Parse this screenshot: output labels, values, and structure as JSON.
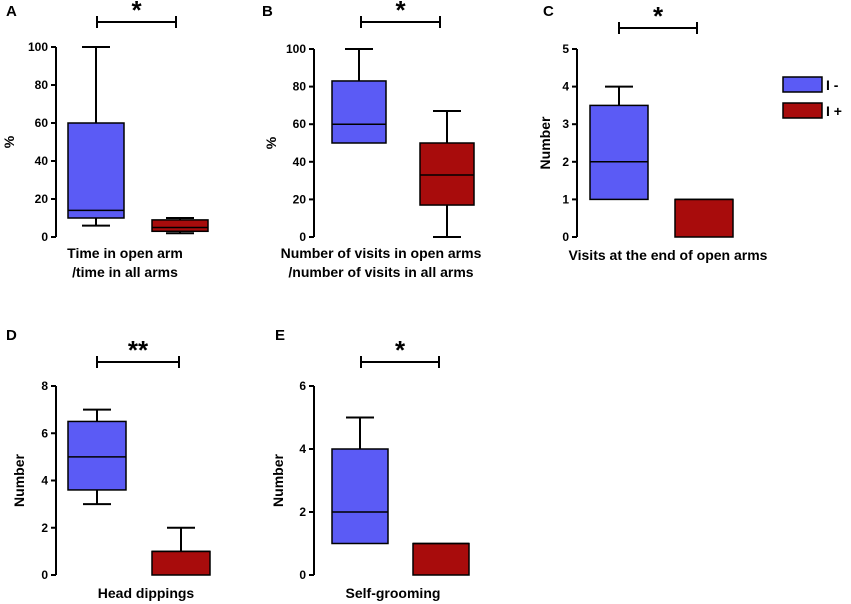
{
  "colors": {
    "group_a": "#5b5bf5",
    "group_b": "#a80c0c",
    "stroke": "#000000"
  },
  "legend": [
    {
      "label": "I -",
      "color": "#5b5bf5"
    },
    {
      "label": "I +",
      "color": "#a80c0c"
    }
  ],
  "chart_data": [
    {
      "type": "box",
      "panel": "A",
      "ylabel": "%",
      "xlabel_lines": [
        "Time in open arm",
        "/time in all arms"
      ],
      "ylim": [
        0,
        100
      ],
      "ticks": [
        0,
        20,
        40,
        60,
        80,
        100
      ],
      "significance": "*",
      "series": [
        {
          "name": "I -",
          "min": 6,
          "q1": 10,
          "median": 14,
          "q3": 60,
          "max": 100
        },
        {
          "name": "I +",
          "min": 2,
          "q1": 3,
          "median": 5,
          "q3": 9,
          "max": 10
        }
      ]
    },
    {
      "type": "box",
      "panel": "B",
      "ylabel": "%",
      "xlabel_lines": [
        "Number of visits in open arms",
        "/number of visits in all arms"
      ],
      "ylim": [
        0,
        100
      ],
      "ticks": [
        0,
        20,
        40,
        60,
        80,
        100
      ],
      "significance": "*",
      "series": [
        {
          "name": "I -",
          "min": 50,
          "q1": 50,
          "median": 60,
          "q3": 83,
          "max": 100
        },
        {
          "name": "I +",
          "min": 0,
          "q1": 17,
          "median": 33,
          "q3": 50,
          "max": 67
        }
      ]
    },
    {
      "type": "box",
      "panel": "C",
      "ylabel": "Number",
      "xlabel_lines": [
        "Visits at the end of open arms"
      ],
      "ylim": [
        0,
        5
      ],
      "ticks": [
        0,
        1,
        2,
        3,
        4,
        5
      ],
      "significance": "*",
      "series": [
        {
          "name": "I -",
          "min": 1,
          "q1": 1,
          "median": 2,
          "q3": 3.5,
          "max": 4
        },
        {
          "name": "I +",
          "min": 0,
          "q1": 0,
          "median": 1,
          "q3": 1,
          "max": 1
        }
      ]
    },
    {
      "type": "box",
      "panel": "D",
      "ylabel": "Number",
      "xlabel_lines": [
        "Head dippings"
      ],
      "ylim": [
        0,
        8
      ],
      "ticks": [
        0,
        2,
        4,
        6,
        8
      ],
      "significance": "**",
      "series": [
        {
          "name": "I -",
          "min": 3,
          "q1": 3.6,
          "median": 5,
          "q3": 6.5,
          "max": 7
        },
        {
          "name": "I +",
          "min": 0,
          "q1": 0,
          "median": 1,
          "q3": 1,
          "max": 2
        }
      ]
    },
    {
      "type": "box",
      "panel": "E",
      "ylabel": "Number",
      "xlabel_lines": [
        "Self-grooming"
      ],
      "ylim": [
        0,
        6
      ],
      "ticks": [
        0,
        2,
        4,
        6
      ],
      "significance": "*",
      "series": [
        {
          "name": "I -",
          "min": 1,
          "q1": 1,
          "median": 2,
          "q3": 4,
          "max": 5
        },
        {
          "name": "I +",
          "min": 0,
          "q1": 0,
          "median": 1,
          "q3": 1,
          "max": 1
        }
      ]
    }
  ]
}
